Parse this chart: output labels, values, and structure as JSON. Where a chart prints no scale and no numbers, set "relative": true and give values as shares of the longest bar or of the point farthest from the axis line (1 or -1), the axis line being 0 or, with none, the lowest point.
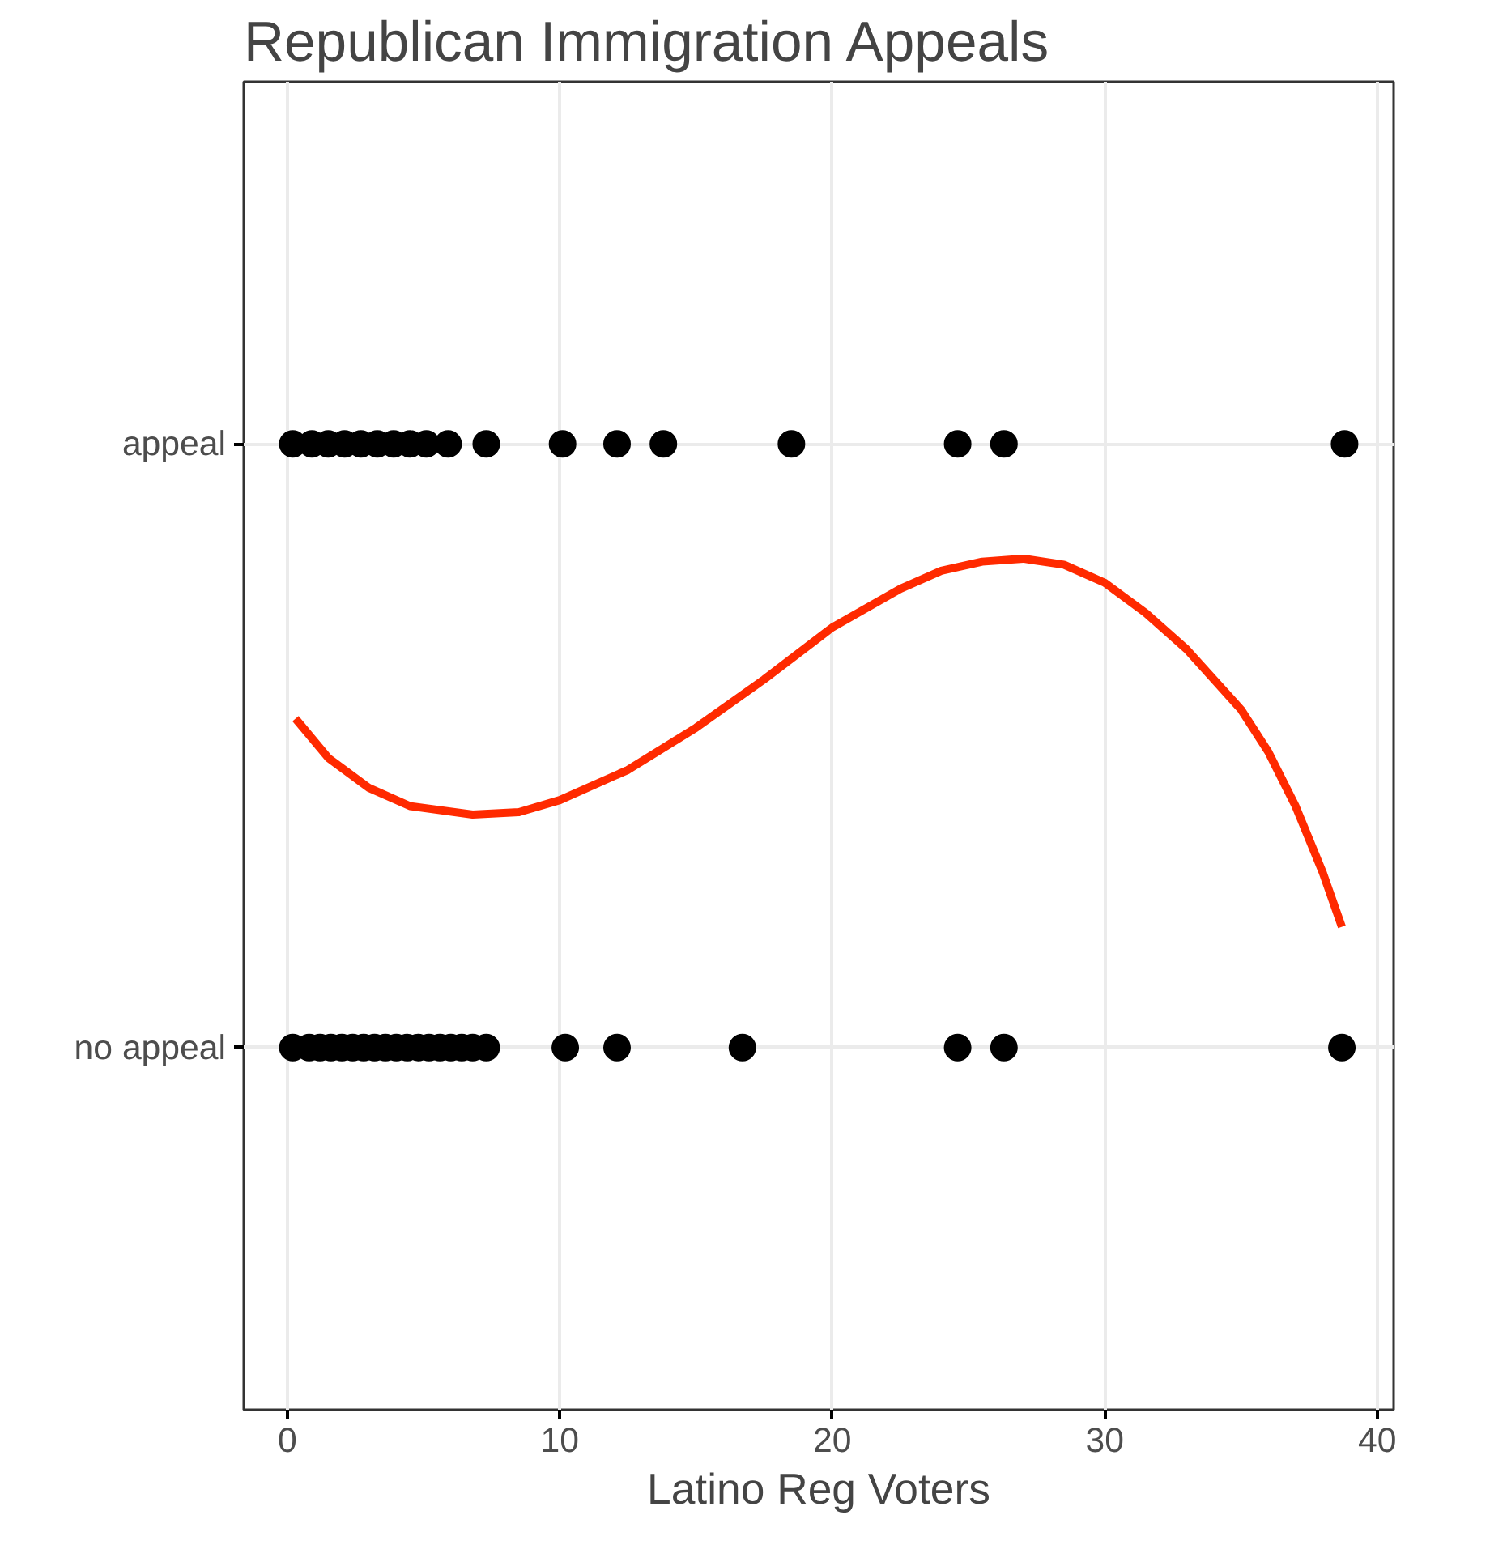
{
  "chart_data": {
    "type": "scatter",
    "title": "Republican Immigration Appeals",
    "xlabel": "Latino Reg Voters",
    "xlim": [
      -1.6,
      40.6
    ],
    "xticks": [
      0,
      10,
      20,
      30,
      40
    ],
    "relative": true,
    "y_categories": [
      "appeal",
      "no appeal"
    ],
    "grid": true,
    "marker": "circle",
    "series": [
      {
        "color": "#000000",
        "x": [
          0.2,
          0.9,
          1.5,
          2.1,
          2.7,
          3.3,
          3.9,
          4.5,
          5.1,
          5.9,
          7.3,
          10.1,
          12.1,
          13.8,
          18.5,
          24.6,
          26.3,
          38.8
        ],
        "values": [
          1,
          1,
          1,
          1,
          1,
          1,
          1,
          1,
          1,
          1,
          1,
          1,
          1,
          1,
          1,
          1,
          1,
          1
        ]
      },
      {
        "color": "#000000",
        "x": [
          0.2,
          0.8,
          1.2,
          1.6,
          2.0,
          2.4,
          2.8,
          3.2,
          3.6,
          4.0,
          4.4,
          4.8,
          5.2,
          5.6,
          6.0,
          6.4,
          6.8,
          7.3,
          10.2,
          12.1,
          16.7,
          24.6,
          26.3,
          38.7
        ],
        "values": [
          0,
          0,
          0,
          0,
          0,
          0,
          0,
          0,
          0,
          0,
          0,
          0,
          0,
          0,
          0,
          0,
          0,
          0,
          0,
          0,
          0,
          0,
          0,
          0
        ]
      },
      {
        "type": "line",
        "color": "#ff2a00",
        "marker": "none",
        "x": [
          0.3,
          1.5,
          3,
          4.5,
          6.8,
          8.5,
          10,
          12.5,
          15,
          17.5,
          20,
          22.5,
          24,
          25.5,
          27,
          28.5,
          30,
          31.5,
          33,
          34,
          35,
          36,
          37,
          38,
          38.7
        ],
        "values": [
          0.545,
          0.48,
          0.43,
          0.4,
          0.386,
          0.39,
          0.41,
          0.46,
          0.53,
          0.61,
          0.696,
          0.76,
          0.79,
          0.805,
          0.81,
          0.8,
          0.77,
          0.72,
          0.66,
          0.61,
          0.56,
          0.49,
          0.4,
          0.29,
          0.2
        ]
      }
    ]
  }
}
